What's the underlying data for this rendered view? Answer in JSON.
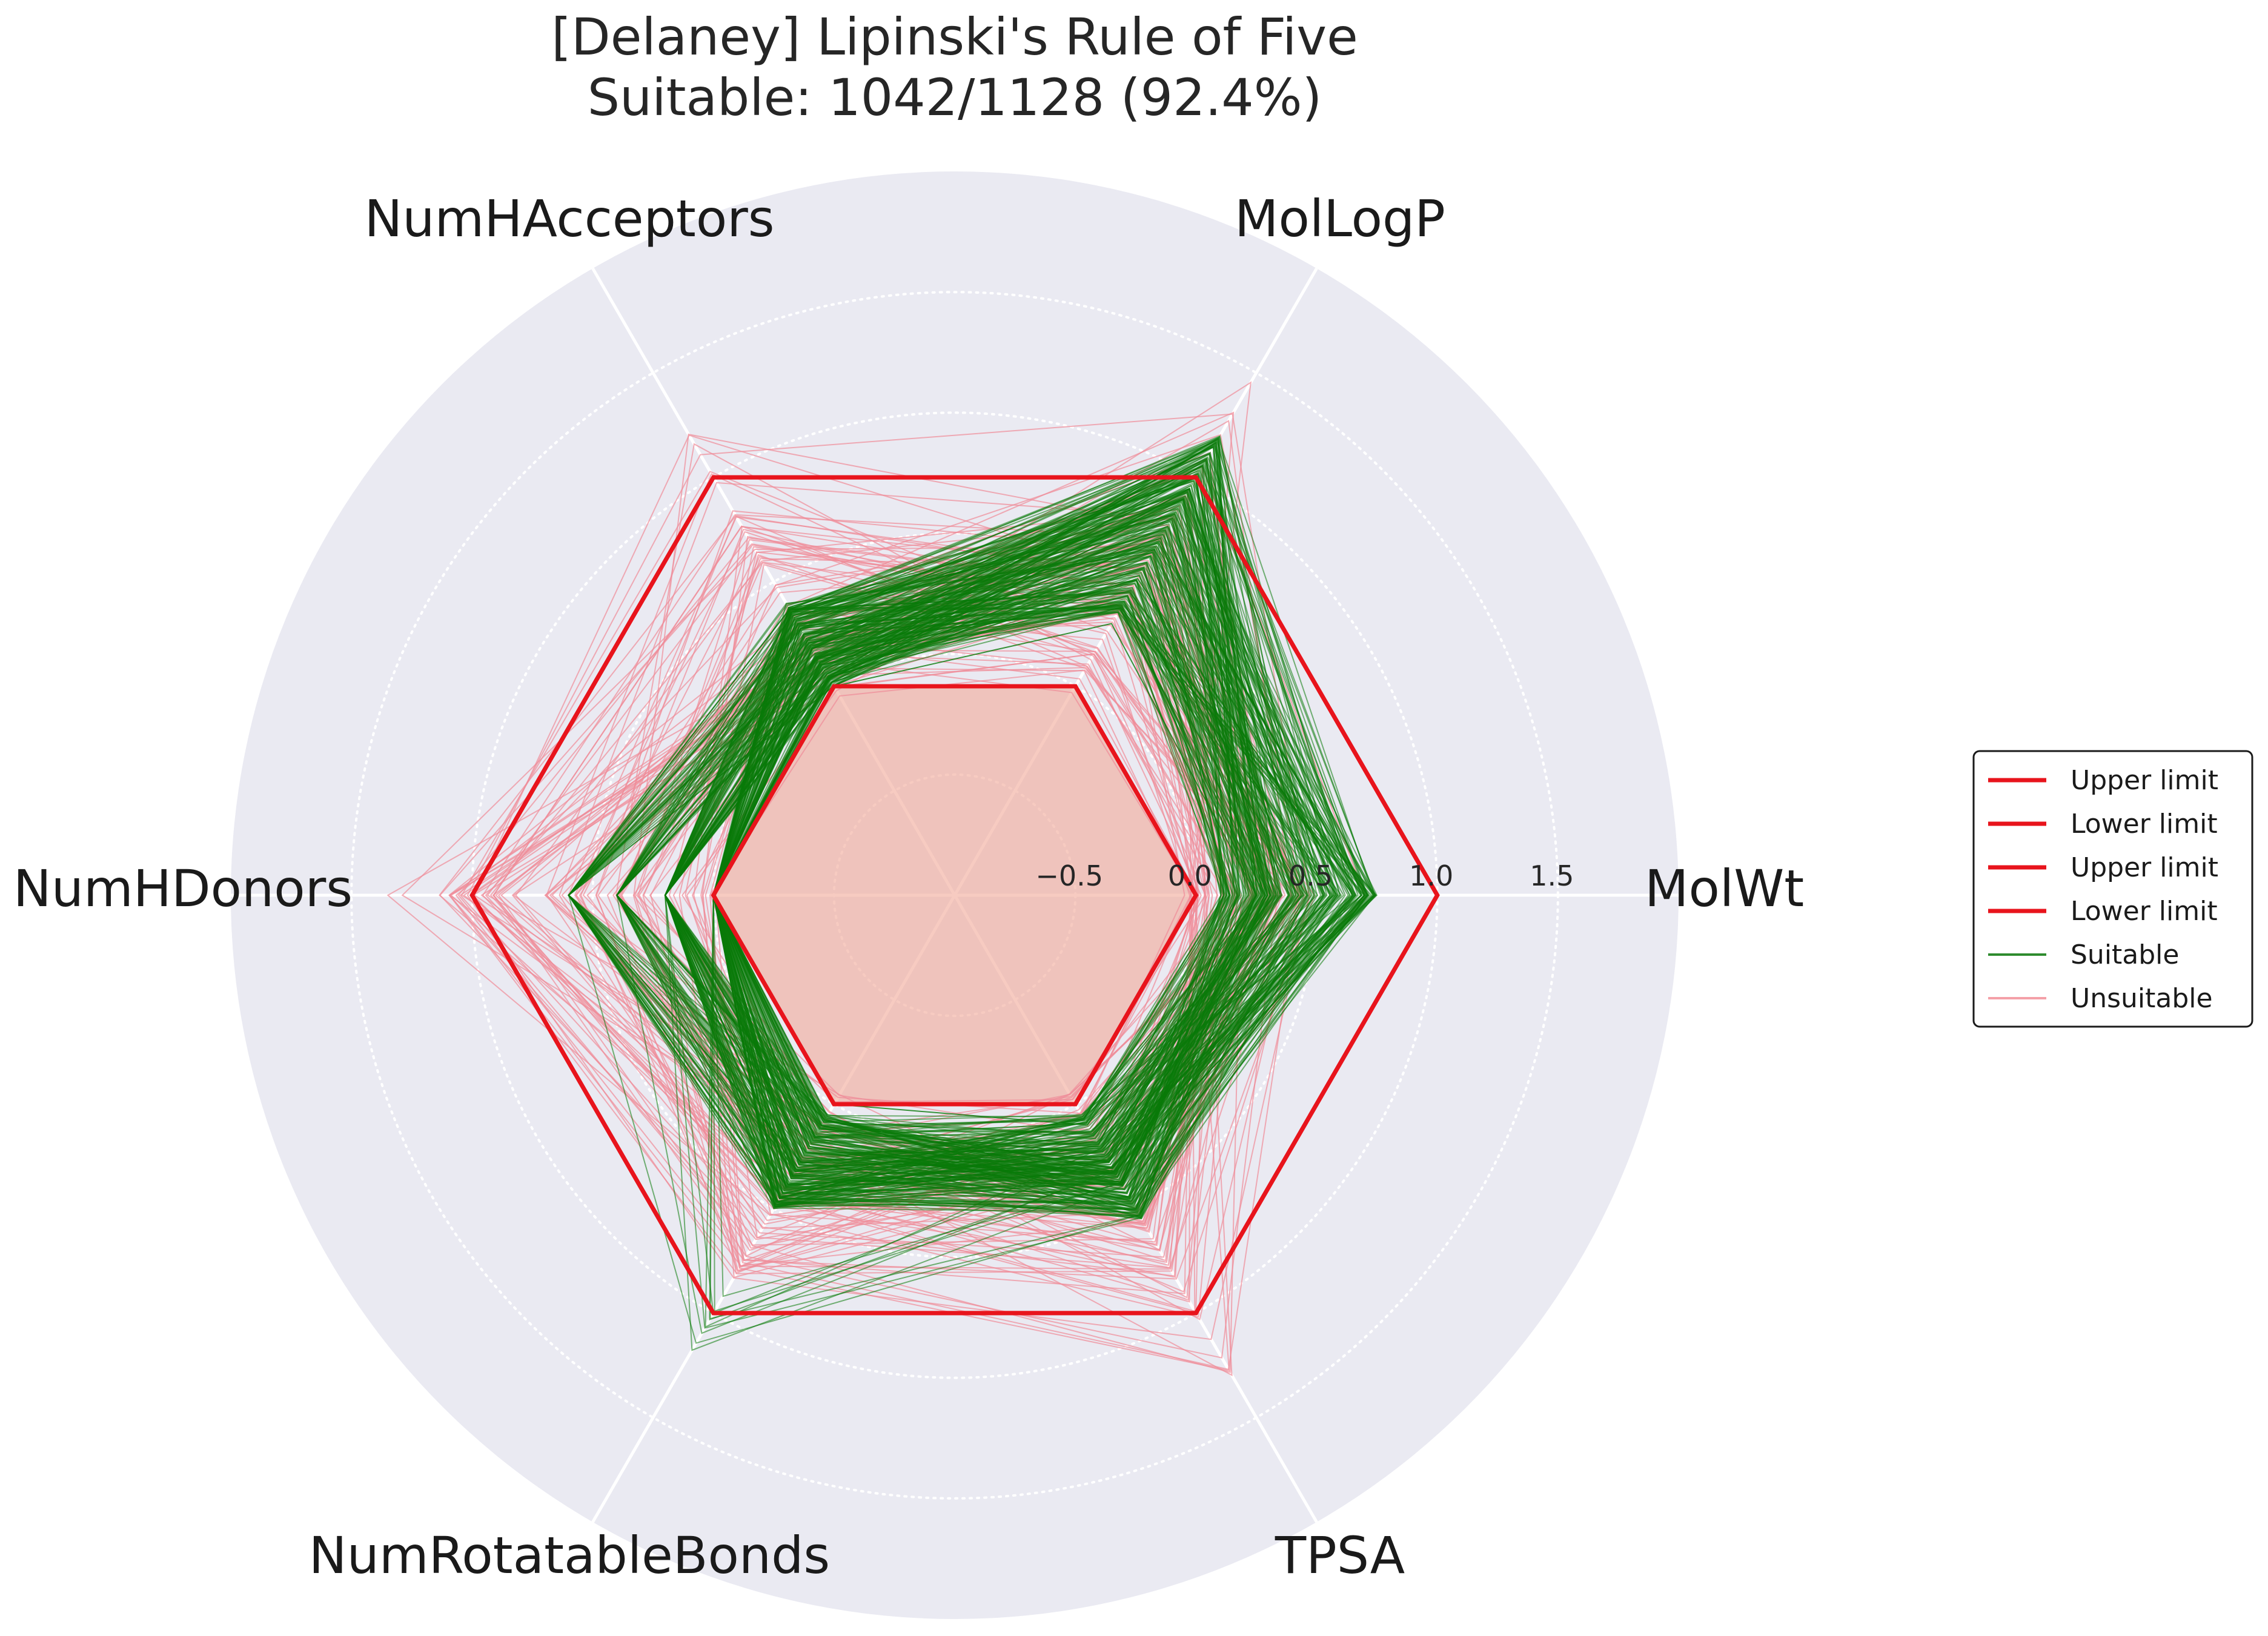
{
  "chart_data": {
    "type": "radar",
    "title_line1": "[Delaney] Lipinski's Rule of Five",
    "title_line2": "Suitable: 1042/1128 (92.4%)",
    "axes": [
      "MolWt",
      "MolLogP",
      "NumHAcceptors",
      "NumHDonors",
      "NumRotatableBonds",
      "TPSA"
    ],
    "radial_ticks": [
      -0.5,
      0.0,
      0.5,
      1.0,
      1.5
    ],
    "radial_tick_labels": [
      "−0.5",
      "0.0",
      "0.5",
      "1.0",
      "1.5"
    ],
    "rlim": [
      -1.0,
      2.0
    ],
    "grid": true,
    "legend_position": "right",
    "limits": [
      {
        "name": "Upper limit",
        "values": [
          1.0,
          1.0,
          1.0,
          1.0,
          1.0,
          1.0
        ],
        "color": "#e8141c"
      },
      {
        "name": "Lower limit",
        "values": [
          0.0,
          0.0,
          0.0,
          0.0,
          0.0,
          0.0
        ],
        "color": "#e8141c"
      },
      {
        "name": "Upper limit",
        "values": [
          1.0,
          1.0,
          1.0,
          1.0,
          1.0,
          1.0
        ],
        "color": "#e8141c"
      },
      {
        "name": "Lower limit",
        "values": [
          0.0,
          0.0,
          0.0,
          0.0,
          0.0,
          0.0
        ],
        "color": "#e8141c"
      }
    ],
    "suitable_example": [
      0.25,
      0.3,
      0.0,
      0.0,
      0.0,
      0.1
    ],
    "unsuitable_example": [
      0.7,
      1.05,
      0.3,
      0.2,
      0.3,
      0.4
    ],
    "legend": [
      {
        "label": "Upper limit",
        "color": "#e8141c",
        "style": "thick"
      },
      {
        "label": "Lower limit",
        "color": "#e8141c",
        "style": "thick"
      },
      {
        "label": "Upper limit",
        "color": "#e8141c",
        "style": "thick"
      },
      {
        "label": "Lower limit",
        "color": "#e8141c",
        "style": "thick"
      },
      {
        "label": "Suitable",
        "color": "#2e8b2e",
        "style": "thin"
      },
      {
        "label": "Unsuitable",
        "color": "#f4a0a8",
        "style": "thin"
      }
    ],
    "colors": {
      "background": "#eaeaf2",
      "limit": "#e8141c",
      "suitable": "#0a7a0a",
      "unsuitable": "#f08c98",
      "fill": "#f2a898"
    }
  }
}
